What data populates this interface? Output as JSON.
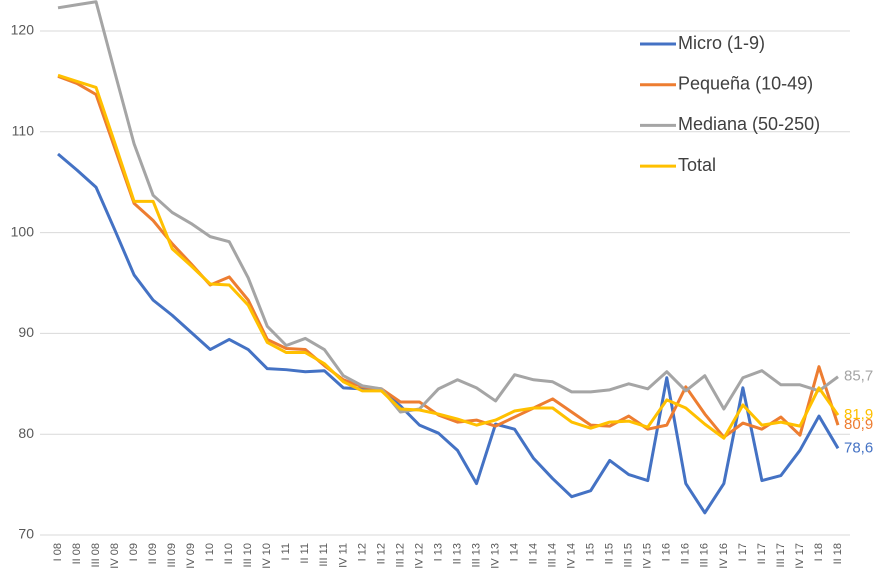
{
  "chart_data": {
    "type": "line",
    "categories": [
      "I 08",
      "II 08",
      "III 08",
      "IV 08",
      "I 09",
      "II 09",
      "III 09",
      "IV 09",
      "I 10",
      "II 10",
      "III 10",
      "IV 10",
      "I 11",
      "II 11",
      "III 11",
      "IV 11",
      "I 12",
      "II 12",
      "III 12",
      "IV 12",
      "I 13",
      "II 13",
      "III 13",
      "IV 13",
      "I 14",
      "II 14",
      "III 14",
      "IV 14",
      "I 15",
      "II 15",
      "III 15",
      "IV 15",
      "I 16",
      "II 16",
      "III 16",
      "IV 16",
      "I 17",
      "II 17",
      "III 17",
      "IV 17",
      "I 18",
      "II 18"
    ],
    "series": [
      {
        "name": "Micro (1-9)",
        "color": "#4472c4",
        "values": [
          107.8,
          106.2,
          104.5,
          100.2,
          95.8,
          93.3,
          91.8,
          90.1,
          88.4,
          89.4,
          88.4,
          86.5,
          86.4,
          86.2,
          86.3,
          84.6,
          84.5,
          84.4,
          82.8,
          80.9,
          80.1,
          78.4,
          75.1,
          81.0,
          80.5,
          77.6,
          75.6,
          73.8,
          74.4,
          77.4,
          76.0,
          75.4,
          85.6,
          75.1,
          72.2,
          75.1,
          84.6,
          75.4,
          75.9,
          78.4,
          81.8,
          78.6
        ],
        "value_labels": [
          null,
          null,
          null,
          null,
          null,
          null,
          null,
          null,
          null,
          null,
          null,
          null,
          null,
          null,
          null,
          null,
          null,
          null,
          null,
          null,
          null,
          null,
          null,
          null,
          null,
          null,
          null,
          null,
          null,
          null,
          null,
          null,
          null,
          null,
          null,
          null,
          null,
          null,
          null,
          null,
          null,
          "78,6"
        ]
      },
      {
        "name": "Pequeña (10-49)",
        "color": "#ed7d31",
        "values": [
          115.5,
          114.8,
          113.7,
          108.3,
          102.9,
          101.2,
          98.9,
          96.9,
          94.8,
          95.6,
          93.3,
          89.4,
          88.5,
          88.4,
          86.8,
          85.4,
          84.7,
          84.5,
          83.2,
          83.2,
          81.9,
          81.2,
          81.4,
          80.8,
          81.7,
          82.6,
          83.5,
          82.2,
          80.9,
          80.8,
          81.8,
          80.5,
          80.9,
          84.7,
          82.0,
          79.7,
          81.1,
          80.5,
          81.7,
          79.9,
          86.7,
          80.9
        ],
        "value_labels": [
          null,
          null,
          null,
          null,
          null,
          null,
          null,
          null,
          null,
          null,
          null,
          null,
          null,
          null,
          null,
          null,
          null,
          null,
          null,
          null,
          null,
          null,
          null,
          null,
          null,
          null,
          null,
          null,
          null,
          null,
          null,
          null,
          null,
          null,
          null,
          null,
          null,
          null,
          null,
          null,
          null,
          "80,9"
        ]
      },
      {
        "name": "Mediana (50-250)",
        "color": "#a5a5a5",
        "values": [
          122.3,
          122.6,
          122.9,
          115.8,
          108.8,
          103.7,
          102.0,
          100.9,
          99.6,
          99.1,
          95.5,
          90.7,
          88.8,
          89.5,
          88.4,
          85.8,
          84.8,
          84.5,
          82.2,
          82.5,
          84.5,
          85.4,
          84.6,
          83.3,
          85.9,
          85.4,
          85.2,
          84.2,
          84.2,
          84.4,
          85.0,
          84.5,
          86.2,
          84.3,
          85.8,
          82.5,
          85.6,
          86.3,
          84.9,
          84.9,
          84.3,
          85.7
        ],
        "value_labels": [
          null,
          null,
          null,
          null,
          null,
          null,
          null,
          null,
          null,
          null,
          null,
          null,
          null,
          null,
          null,
          null,
          null,
          null,
          null,
          null,
          null,
          null,
          null,
          null,
          null,
          null,
          null,
          null,
          null,
          null,
          null,
          null,
          null,
          null,
          null,
          null,
          null,
          null,
          null,
          null,
          null,
          "85,7"
        ]
      },
      {
        "name": "Total",
        "color": "#ffc000",
        "values": [
          115.6,
          115.0,
          114.4,
          108.8,
          103.1,
          103.1,
          98.4,
          96.7,
          94.9,
          94.8,
          92.8,
          89.1,
          88.1,
          88.1,
          87.0,
          85.2,
          84.3,
          84.3,
          82.5,
          82.4,
          82.0,
          81.5,
          80.9,
          81.4,
          82.3,
          82.6,
          82.6,
          81.2,
          80.6,
          81.2,
          81.3,
          80.7,
          83.4,
          82.6,
          81.0,
          79.6,
          82.9,
          80.9,
          81.2,
          80.8,
          84.6,
          81.9
        ],
        "value_labels": [
          null,
          null,
          null,
          null,
          null,
          null,
          null,
          null,
          null,
          null,
          null,
          null,
          null,
          null,
          null,
          null,
          null,
          null,
          null,
          null,
          null,
          null,
          null,
          null,
          null,
          null,
          null,
          null,
          null,
          null,
          null,
          null,
          null,
          null,
          null,
          null,
          null,
          null,
          null,
          null,
          null,
          "81,9"
        ]
      }
    ],
    "ylim": [
      70,
      123
    ],
    "yticks": [
      70,
      80,
      90,
      100,
      110,
      120
    ],
    "grid": true,
    "legend": "upper right"
  }
}
